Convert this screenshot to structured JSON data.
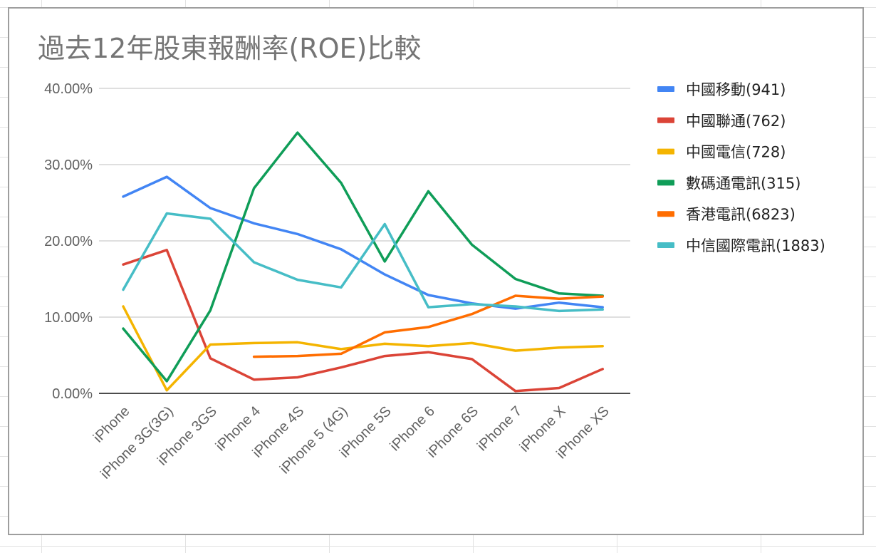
{
  "chart_data": {
    "type": "line",
    "title": "過去12年股東報酬率(ROE)比較",
    "xlabel": "",
    "ylabel": "",
    "categories": [
      "iPhone",
      "iPhone 3G(3G)",
      "iPhone 3GS",
      "iPhone 4",
      "iPhone 4S",
      "iPhone 5 (4G)",
      "iPhone 5S",
      "iPhone 6",
      "iPhone 6S",
      "iPhone 7",
      "iPhone X",
      "iPhone XS"
    ],
    "ylim": [
      0,
      40
    ],
    "yticks": [
      0,
      10,
      20,
      30,
      40
    ],
    "ytick_labels": [
      "0.00%",
      "10.00%",
      "20.00%",
      "30.00%",
      "40.00%"
    ],
    "grid": true,
    "legend_position": "right",
    "series": [
      {
        "name": "中國移動(941)",
        "color": "#4285f4",
        "values": [
          25.8,
          28.4,
          24.3,
          22.3,
          20.9,
          18.9,
          15.6,
          12.9,
          11.8,
          11.1,
          11.9,
          11.3
        ]
      },
      {
        "name": "中國聯通(762)",
        "color": "#db4437",
        "values": [
          16.9,
          18.8,
          4.6,
          1.8,
          2.1,
          3.4,
          4.9,
          5.4,
          4.5,
          0.3,
          0.7,
          3.2
        ]
      },
      {
        "name": "中國電信(728)",
        "color": "#f4b400",
        "values": [
          11.4,
          0.4,
          6.4,
          6.6,
          6.7,
          5.8,
          6.5,
          6.2,
          6.6,
          5.6,
          6.0,
          6.2
        ]
      },
      {
        "name": "數碼通電訊(315)",
        "color": "#0f9d58",
        "values": [
          8.5,
          1.6,
          10.9,
          26.9,
          34.2,
          27.6,
          17.3,
          26.5,
          19.5,
          15.0,
          13.1,
          12.8
        ]
      },
      {
        "name": "香港電訊(6823)",
        "color": "#ff6d00",
        "values": [
          null,
          null,
          null,
          4.8,
          4.9,
          5.2,
          8.0,
          8.7,
          10.4,
          12.8,
          12.4,
          12.7
        ]
      },
      {
        "name": "中信國際電訊(1883)",
        "color": "#46bdc6",
        "values": [
          13.6,
          23.6,
          22.9,
          17.2,
          14.9,
          13.9,
          22.2,
          11.3,
          11.7,
          11.4,
          10.8,
          11.0
        ]
      }
    ]
  }
}
